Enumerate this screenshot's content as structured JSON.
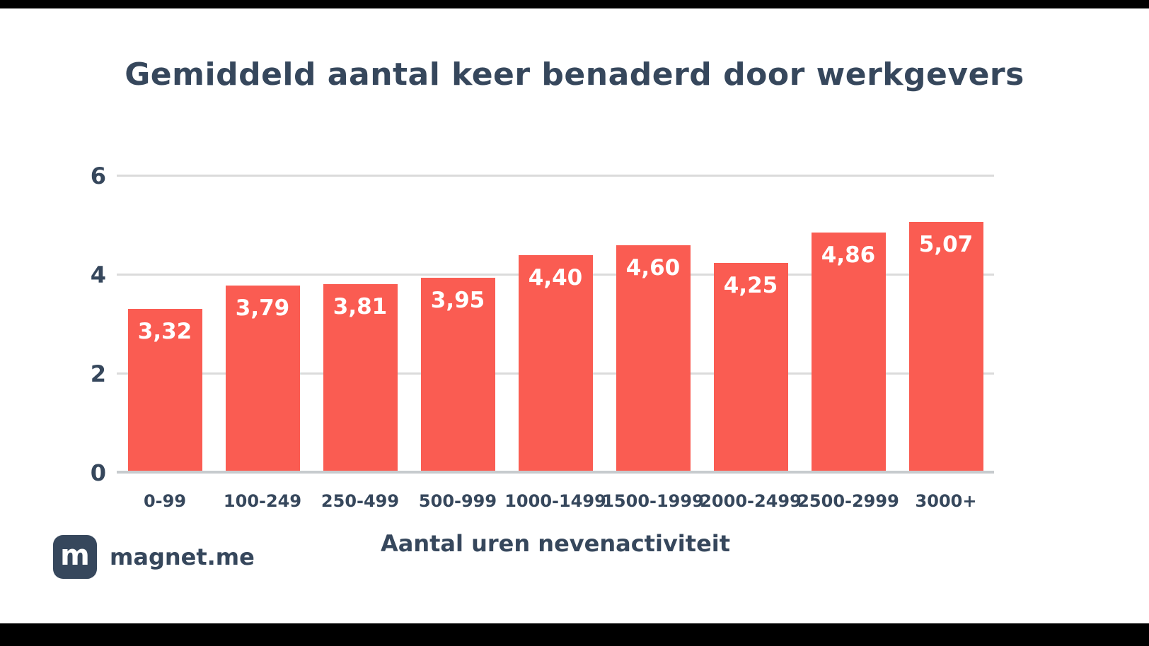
{
  "title": "Gemiddeld aantal keer benaderd door werkgevers",
  "chart_data": {
    "type": "bar",
    "title": "Gemiddeld aantal keer benaderd door werkgevers",
    "categories": [
      "0-99",
      "100-249",
      "250-499",
      "500-999",
      "1000-1499",
      "1500-1999",
      "2000-2499",
      "2500-2999",
      "3000+"
    ],
    "values": [
      3.32,
      3.79,
      3.81,
      3.95,
      4.4,
      4.6,
      4.25,
      4.86,
      5.07
    ],
    "value_labels": [
      "3,32",
      "3,79",
      "3,81",
      "3,95",
      "4,40",
      "4,60",
      "4,25",
      "4,86",
      "5,07"
    ],
    "xlabel": "Aantal uren nevenactiviteit",
    "ylabel": "",
    "ylim": [
      0,
      6
    ],
    "yticks": [
      0,
      2,
      4,
      6
    ],
    "grid": true,
    "legend": false,
    "bar_color": "#FA5C52"
  },
  "branding": {
    "logo_letter": "m",
    "logo_text": "magnet.me"
  },
  "colors": {
    "bar": "#FA5C52",
    "title_text": "#36475C",
    "grid": "#DBDBDB",
    "baseline": "#C7CBCE",
    "background": "#FFFFFF",
    "logo_box": "#36475C"
  }
}
